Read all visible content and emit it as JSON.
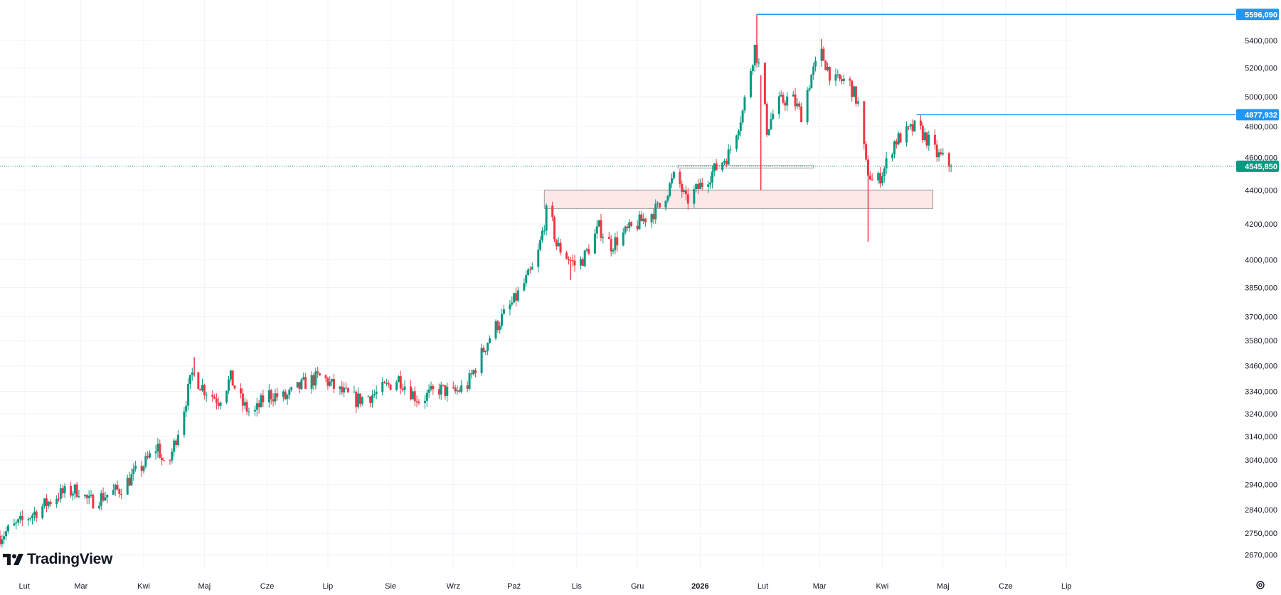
{
  "brand": {
    "name": "TradingView"
  },
  "icons": {
    "logo": "tradingview-logo-icon",
    "settings": "settings-gear-icon"
  },
  "colors": {
    "up": "#089981",
    "down": "#f23645",
    "line": "#2962ff",
    "level_label": "#2196f3",
    "last_price": "#089981",
    "zone_fill": "#fde8e8",
    "zone_border": "#9c9c9c",
    "grid": "#f0f3fa",
    "axis_text": "#131722"
  },
  "chart_data": {
    "type": "candlestick",
    "title": "",
    "y_scale": "log",
    "ylim": [
      2620000,
      5680000
    ],
    "grid": true,
    "x_ticks": [
      {
        "label": "Lut",
        "date": "2025-02-01"
      },
      {
        "label": "Mar",
        "date": "2025-03-01"
      },
      {
        "label": "Kwi",
        "date": "2025-04-01"
      },
      {
        "label": "Maj",
        "date": "2025-05-01"
      },
      {
        "label": "Cze",
        "date": "2025-06-01"
      },
      {
        "label": "Lip",
        "date": "2025-07-01"
      },
      {
        "label": "Sie",
        "date": "2025-08-01"
      },
      {
        "label": "Wrz",
        "date": "2025-09-01"
      },
      {
        "label": "Paź",
        "date": "2025-10-01"
      },
      {
        "label": "Lis",
        "date": "2025-11-01"
      },
      {
        "label": "Gru",
        "date": "2025-12-01"
      },
      {
        "label": "2026",
        "date": "2026-01-01",
        "bold": true
      },
      {
        "label": "Lut",
        "date": "2026-02-01"
      },
      {
        "label": "Mar",
        "date": "2026-03-01"
      },
      {
        "label": "Kwi",
        "date": "2026-04-01"
      },
      {
        "label": "Maj",
        "date": "2026-05-01"
      },
      {
        "label": "Cze",
        "date": "2026-06-01"
      },
      {
        "label": "Lip",
        "date": "2026-07-01"
      }
    ],
    "y_ticks": [
      {
        "value": 5400000,
        "label": "5400,000"
      },
      {
        "value": 5200000,
        "label": "5200,000"
      },
      {
        "value": 5000000,
        "label": "5000,000"
      },
      {
        "value": 4800000,
        "label": "4800,000"
      },
      {
        "value": 4600000,
        "label": "4600,000"
      },
      {
        "value": 4400000,
        "label": "4400,000"
      },
      {
        "value": 4200000,
        "label": "4200,000"
      },
      {
        "value": 4000000,
        "label": "4000,000"
      },
      {
        "value": 3850000,
        "label": "3850,000"
      },
      {
        "value": 3700000,
        "label": "3700,000"
      },
      {
        "value": 3580000,
        "label": "3580,000"
      },
      {
        "value": 3460000,
        "label": "3460,000"
      },
      {
        "value": 3340000,
        "label": "3340,000"
      },
      {
        "value": 3240000,
        "label": "3240,000"
      },
      {
        "value": 3140000,
        "label": "3140,000"
      },
      {
        "value": 3040000,
        "label": "3040,000"
      },
      {
        "value": 2940000,
        "label": "2940,000"
      },
      {
        "value": 2840000,
        "label": "2840,000"
      },
      {
        "value": 2750000,
        "label": "2750,000"
      },
      {
        "value": 2670000,
        "label": "2670,000"
      }
    ],
    "price_path": [
      [
        "2025-01-20",
        2740000
      ],
      [
        "2025-02-01",
        2800000
      ],
      [
        "2025-02-18",
        2900000
      ],
      [
        "2025-02-28",
        2920000
      ],
      [
        "2025-03-05",
        2870000
      ],
      [
        "2025-03-20",
        2920000
      ],
      [
        "2025-04-01",
        3020000
      ],
      [
        "2025-04-08",
        3100000
      ],
      [
        "2025-04-12",
        2980000
      ],
      [
        "2025-04-20",
        3230000
      ],
      [
        "2025-04-25",
        3420000
      ],
      [
        "2025-05-01",
        3350000
      ],
      [
        "2025-05-08",
        3300000
      ],
      [
        "2025-05-14",
        3400000
      ],
      [
        "2025-05-20",
        3280000
      ],
      [
        "2025-05-25",
        3230000
      ],
      [
        "2025-06-01",
        3330000
      ],
      [
        "2025-06-10",
        3310000
      ],
      [
        "2025-06-20",
        3380000
      ],
      [
        "2025-06-28",
        3410000
      ],
      [
        "2025-07-05",
        3350000
      ],
      [
        "2025-07-15",
        3300000
      ],
      [
        "2025-07-25",
        3330000
      ],
      [
        "2025-08-05",
        3400000
      ],
      [
        "2025-08-15",
        3300000
      ],
      [
        "2025-08-25",
        3350000
      ],
      [
        "2025-09-01",
        3330000
      ],
      [
        "2025-09-08",
        3370000
      ],
      [
        "2025-09-20",
        3620000
      ],
      [
        "2025-10-01",
        3780000
      ],
      [
        "2025-10-12",
        3980000
      ],
      [
        "2025-10-18",
        4320000
      ],
      [
        "2025-10-22",
        4080000
      ],
      [
        "2025-11-01",
        3960000
      ],
      [
        "2025-11-05",
        4020000
      ],
      [
        "2025-11-12",
        4180000
      ],
      [
        "2025-11-18",
        4080000
      ],
      [
        "2025-11-25",
        4150000
      ],
      [
        "2025-12-01",
        4200000
      ],
      [
        "2025-12-12",
        4300000
      ],
      [
        "2025-12-20",
        4500000
      ],
      [
        "2025-12-25",
        4330000
      ],
      [
        "2026-01-05",
        4480000
      ],
      [
        "2026-01-15",
        4620000
      ],
      [
        "2026-01-22",
        4900000
      ],
      [
        "2026-01-28",
        5350000
      ],
      [
        "2026-01-31",
        5150000
      ],
      [
        "2026-02-03",
        4780000
      ],
      [
        "2026-02-08",
        4950000
      ],
      [
        "2026-02-15",
        5000000
      ],
      [
        "2026-02-20",
        4880000
      ],
      [
        "2026-02-25",
        5150000
      ],
      [
        "2026-03-02",
        5300000
      ],
      [
        "2026-03-08",
        5100000
      ],
      [
        "2026-03-15",
        5120000
      ],
      [
        "2026-03-20",
        4950000
      ],
      [
        "2026-03-24",
        4550000
      ],
      [
        "2026-03-28",
        4420000
      ],
      [
        "2026-04-02",
        4530000
      ],
      [
        "2026-04-07",
        4700000
      ],
      [
        "2026-04-12",
        4750000
      ],
      [
        "2026-04-18",
        4800000
      ],
      [
        "2026-04-23",
        4720000
      ],
      [
        "2026-04-28",
        4620000
      ],
      [
        "2026-05-02",
        4580000
      ],
      [
        "2026-05-05",
        4545850
      ]
    ],
    "spikes": [
      {
        "date": "2025-04-26",
        "high": 3500000
      },
      {
        "date": "2026-01-29",
        "high": 5596090
      },
      {
        "date": "2026-01-31",
        "low": 4400000
      },
      {
        "date": "2026-03-02",
        "high": 5410000
      },
      {
        "date": "2026-03-25",
        "low": 4100000
      },
      {
        "date": "2025-10-29",
        "low": 3890000
      }
    ],
    "levels": [
      {
        "from": "2026-01-29",
        "value": 5596090,
        "label": "5596,090"
      },
      {
        "from": "2026-04-18",
        "value": 4877932,
        "label": "4877,932"
      }
    ],
    "last_price": {
      "value": 4545850,
      "label": "4545,850"
    },
    "zones": [
      {
        "from": "2025-10-16",
        "to": "2026-04-26",
        "top": 4400000,
        "bottom": 4290000
      },
      {
        "from": "2025-12-21",
        "to": "2026-02-26",
        "top": 4550000,
        "bottom": 4535000
      }
    ]
  }
}
